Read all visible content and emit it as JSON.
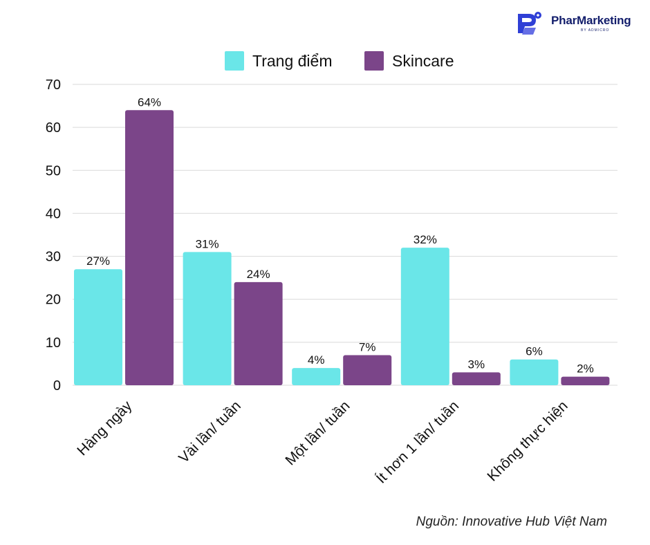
{
  "brand": {
    "name": "PharMarketing",
    "sub": "BY ADMICRO"
  },
  "source": "Nguồn: Innovative Hub Việt Nam",
  "colors": {
    "trang_diem": "#6ae6e8",
    "skincare": "#7b4589",
    "grid": "#d9d9d9",
    "logo": "#2f3fd6"
  },
  "chart_data": {
    "type": "bar",
    "title": "",
    "xlabel": "",
    "ylabel": "",
    "categories": [
      "Hàng ngày",
      "Vài lần/ tuần",
      "Một lần/ tuần",
      "Ít hơn 1 lần/ tuần",
      "Không thực hiện"
    ],
    "series": [
      {
        "name": "Trang điểm",
        "values": [
          27,
          31,
          4,
          32,
          6
        ],
        "labels": [
          "27%",
          "31%",
          "4%",
          "32%",
          "6%"
        ]
      },
      {
        "name": "Skincare",
        "values": [
          64,
          24,
          7,
          3,
          2
        ],
        "labels": [
          "64%",
          "24%",
          "7%",
          "3%",
          "2%"
        ]
      }
    ],
    "ylim": [
      0,
      70
    ],
    "yticks": [
      0,
      10,
      20,
      30,
      40,
      50,
      60,
      70
    ],
    "grid": true,
    "legend": "top-center"
  }
}
